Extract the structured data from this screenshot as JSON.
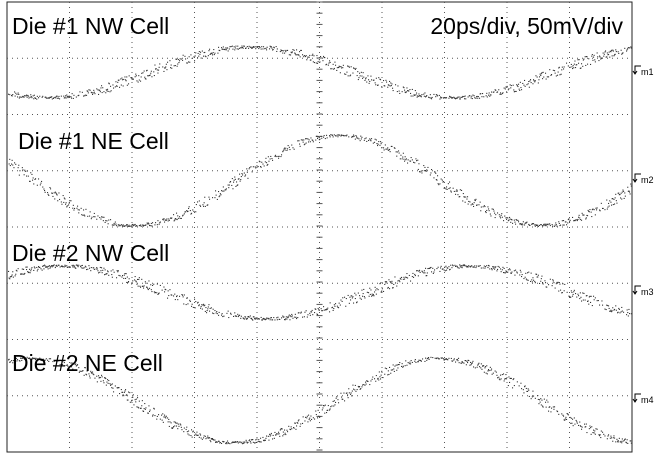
{
  "scale_label": "20ps/div, 50mV/div",
  "chart_data": {
    "type": "line",
    "grid": true,
    "x_divisions": 10,
    "x_unit": "ps",
    "x_per_div": 20,
    "y_unit": "mV",
    "y_per_div": 50,
    "colors": {
      "trace": "#333333",
      "grid": "#555555",
      "background": "#ffffff"
    },
    "series": [
      {
        "name": "Die #1 NW Cell",
        "marker": "m1",
        "amplitude_div": 0.45,
        "period_div": 6.5,
        "peak_x_div": 3.9
      },
      {
        "name": "Die #1 NE Cell",
        "marker": "m2",
        "amplitude_div": 0.8,
        "period_div": 6.5,
        "peak_x_div": 5.3
      },
      {
        "name": "Die #2 NW Cell",
        "marker": "m3",
        "amplitude_div": 0.47,
        "period_div": 6.5,
        "peak_x_div": 7.4
      },
      {
        "name": "Die #2 NE Cell",
        "marker": "m4",
        "amplitude_div": 0.75,
        "period_div": 6.5,
        "peak_x_div": 6.9
      }
    ]
  }
}
